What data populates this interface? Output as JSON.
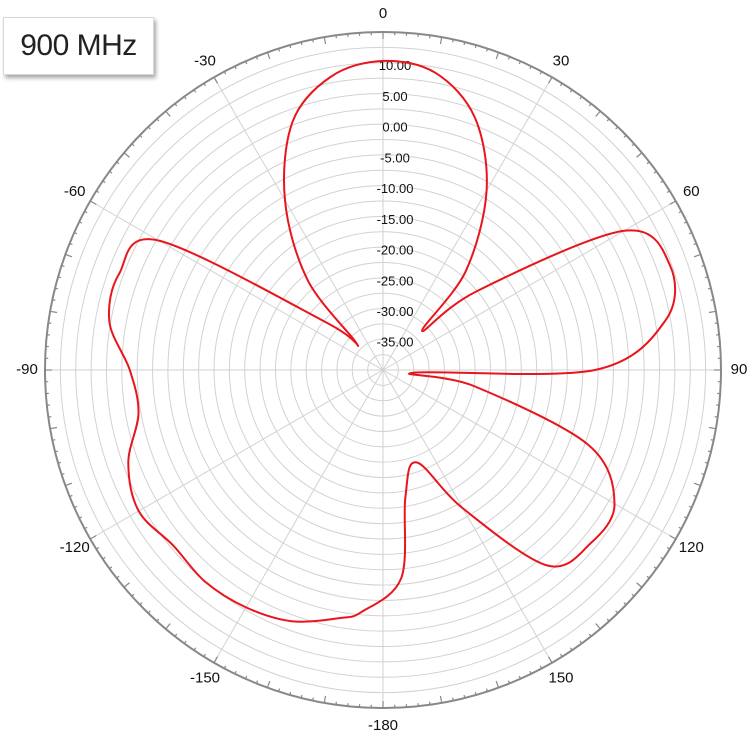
{
  "badge": {
    "label": "900 MHz"
  },
  "chart_data": {
    "type": "polar-line",
    "title": "",
    "angle_unit": "degrees",
    "angle_zero": "top",
    "angle_direction": "clockwise",
    "angle_ticks": [
      0,
      30,
      60,
      90,
      120,
      150,
      -180,
      -150,
      -120,
      -90,
      -60,
      -30
    ],
    "angle_tick_labels": [
      "0",
      "30",
      "60",
      "90",
      "120",
      "150",
      "-180",
      "-150",
      "-120",
      "-90",
      "-60",
      "-30"
    ],
    "radial_range": [
      -40,
      15
    ],
    "radial_tick_labels": [
      "10.00",
      "5.00",
      "0.00",
      "-5.00",
      "-10.00",
      "-15.00",
      "-20.00",
      "-25.00",
      "-30.00",
      "-35.00"
    ],
    "radial_tick_values": [
      10,
      5,
      0,
      -5,
      -10,
      -15,
      -20,
      -25,
      -30,
      -35
    ],
    "grid": true,
    "colors": {
      "series": "#e8151c",
      "grid": "#d2d2d2",
      "axis": "#888888"
    },
    "series": [
      {
        "theta": [
          -175,
          -170,
          -160,
          -150,
          -140,
          -130,
          -120,
          -110,
          -100,
          -90,
          -80,
          -70,
          -60,
          -50,
          -45,
          -40,
          -30,
          -20,
          -10,
          0,
          10,
          20,
          30,
          40,
          45,
          50,
          60,
          70,
          80,
          90,
          95,
          100,
          110,
          120,
          130,
          140,
          150,
          160,
          170,
          175
        ],
        "r": [
          -0.5,
          1.0,
          3.5,
          4.6,
          5.0,
          4.5,
          5.9,
          4.1,
          0.4,
          1.2,
          5.2,
          5.7,
          2.1,
          -28,
          -34,
          -21,
          -8.1,
          3.0,
          8.5,
          10.3,
          9.1,
          3.7,
          -6.3,
          -19.1,
          -31,
          -20,
          5.3,
          9.7,
          6.7,
          -5.5,
          -35,
          -25,
          -4.5,
          3.5,
          4.0,
          1.5,
          -14,
          -24,
          -19,
          -6.0
        ]
      }
    ]
  }
}
